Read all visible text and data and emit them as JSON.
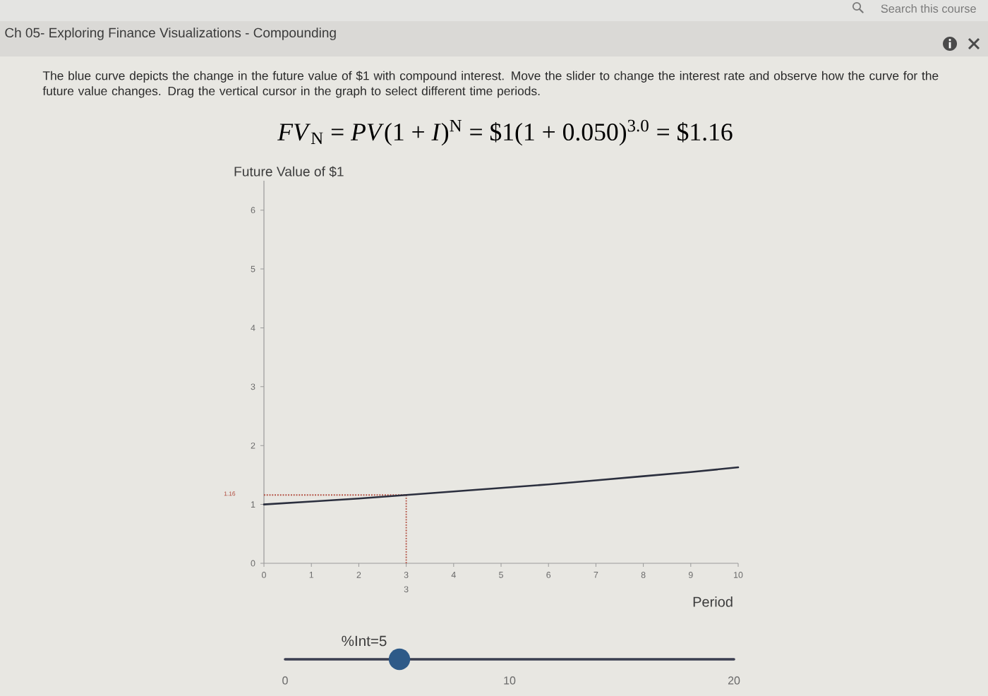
{
  "chart_data": {
    "type": "line",
    "title": "Ch 05- Exploring Finance Visualizations - Compounding",
    "subtitle": "The blue curve depicts the change in the future value of $1 with compound interest. Move the slider to change the interest rate and observe how the curve for the future value changes. Drag the vertical cursor in the graph to select different time periods.",
    "ylabel": "Future Value of $1",
    "xlabel": "Period",
    "x": [
      0,
      1,
      2,
      3,
      4,
      5,
      6,
      7,
      8,
      9,
      10
    ],
    "values": [
      1,
      1.05,
      1.1,
      1.16,
      1.22,
      1.28,
      1.34,
      1.41,
      1.48,
      1.55,
      1.63
    ],
    "color": "#2b2f3e",
    "xlim": [
      0,
      10
    ],
    "ylim": [
      0,
      6.5
    ],
    "xticks": [
      0,
      1,
      2,
      3,
      4,
      5,
      6,
      7,
      8,
      9,
      10
    ],
    "yticks": [
      0,
      1,
      2,
      3,
      4,
      5,
      6
    ],
    "ref_lines": [
      {
        "axis": "y",
        "value": 1.16,
        "label": "1.16",
        "color": "#b04a3c",
        "line_style": "dotted"
      },
      {
        "axis": "x",
        "value": 3,
        "label": "3",
        "color": "#b04a3c",
        "line_style": "dotted"
      }
    ],
    "annotations": [
      "Search this course",
      "*FV*$_{N}$ = *PV*(1 + *I*)$^{N}$ = $1(1 + 0.050)$^{3.0}$ = $1.16",
      "%Int=5",
      "0",
      "10",
      "20"
    ]
  }
}
